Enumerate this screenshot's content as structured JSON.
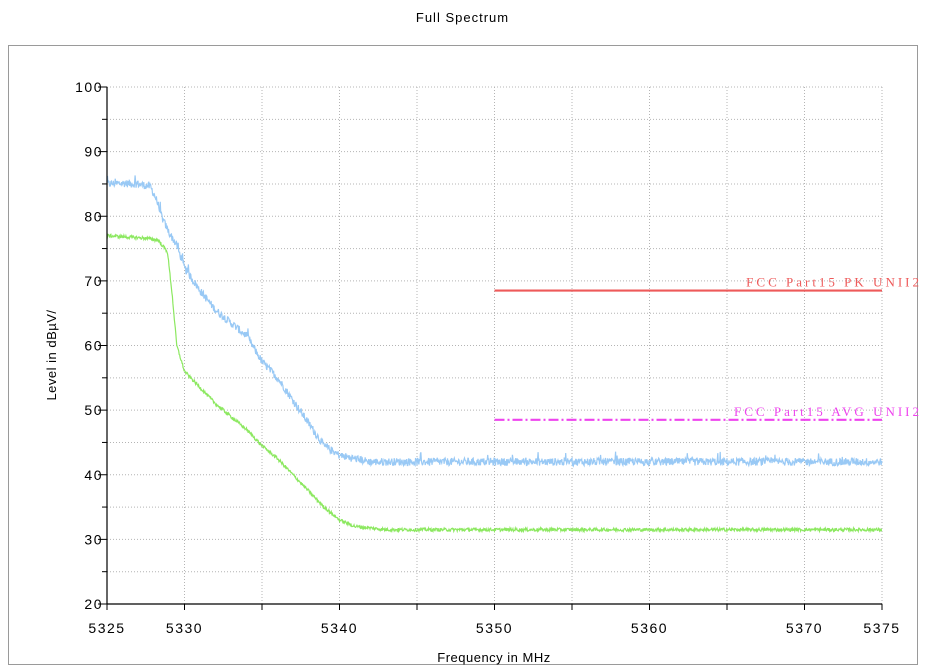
{
  "chart_data": {
    "type": "line",
    "title": "Full Spectrum",
    "xlabel": "Frequency in MHz",
    "ylabel": "Level in dBµV/",
    "xlim": [
      5325,
      5375
    ],
    "ylim": [
      20,
      100
    ],
    "x_ticks": [
      5325,
      5330,
      5340,
      5350,
      5360,
      5370,
      5375
    ],
    "y_ticks": [
      20,
      30,
      40,
      50,
      60,
      70,
      80,
      90,
      100
    ],
    "grid": true,
    "series": [
      {
        "color": "#99c9f5",
        "noise": 0.6,
        "points": [
          [
            5325,
            85.0
          ],
          [
            5326,
            85.1
          ],
          [
            5327,
            85.0
          ],
          [
            5327.8,
            84.6
          ],
          [
            5328.2,
            82.5
          ],
          [
            5328.6,
            79.5
          ],
          [
            5329,
            77.5
          ],
          [
            5329.5,
            75.5
          ],
          [
            5330,
            72.0
          ],
          [
            5331,
            68.5
          ],
          [
            5332,
            65.5
          ],
          [
            5333,
            63.5
          ],
          [
            5334,
            61.5
          ],
          [
            5335,
            57.5
          ],
          [
            5336,
            55.0
          ],
          [
            5337,
            51.5
          ],
          [
            5338,
            48.0
          ],
          [
            5339,
            44.5
          ],
          [
            5340,
            43.0
          ],
          [
            5342,
            42.0
          ],
          [
            5345,
            42.0
          ],
          [
            5350,
            42.0
          ],
          [
            5355,
            42.0
          ],
          [
            5360,
            42.0
          ],
          [
            5365,
            42.0
          ],
          [
            5370,
            42.0
          ],
          [
            5375,
            42.0
          ]
        ]
      },
      {
        "color": "#8ce860",
        "noise": 0.25,
        "points": [
          [
            5325,
            77.0
          ],
          [
            5327.5,
            76.6
          ],
          [
            5328.3,
            76.3
          ],
          [
            5328.9,
            74.5
          ],
          [
            5329.2,
            68.0
          ],
          [
            5329.5,
            60.0
          ],
          [
            5330,
            56.0
          ],
          [
            5331,
            53.5
          ],
          [
            5332,
            51.0
          ],
          [
            5333,
            49.0
          ],
          [
            5334,
            47.0
          ],
          [
            5335,
            44.5
          ],
          [
            5336,
            42.5
          ],
          [
            5337,
            40.0
          ],
          [
            5338,
            37.5
          ],
          [
            5339,
            35.0
          ],
          [
            5340,
            33.0
          ],
          [
            5341,
            32.0
          ],
          [
            5343,
            31.5
          ],
          [
            5345,
            31.5
          ],
          [
            5350,
            31.5
          ],
          [
            5360,
            31.5
          ],
          [
            5370,
            31.5
          ],
          [
            5375,
            31.5
          ]
        ]
      }
    ],
    "limits": [
      {
        "name": "FCC Part15 PK UNII2",
        "x": [
          5350,
          5375
        ],
        "y": 68.5,
        "color": "#ee5a5a",
        "dash": "solid"
      },
      {
        "name": "FCC Part15 AVG UNII2",
        "x": [
          5350,
          5375
        ],
        "y": 48.5,
        "color": "#ee44ee",
        "dash": "dashdot"
      }
    ]
  }
}
